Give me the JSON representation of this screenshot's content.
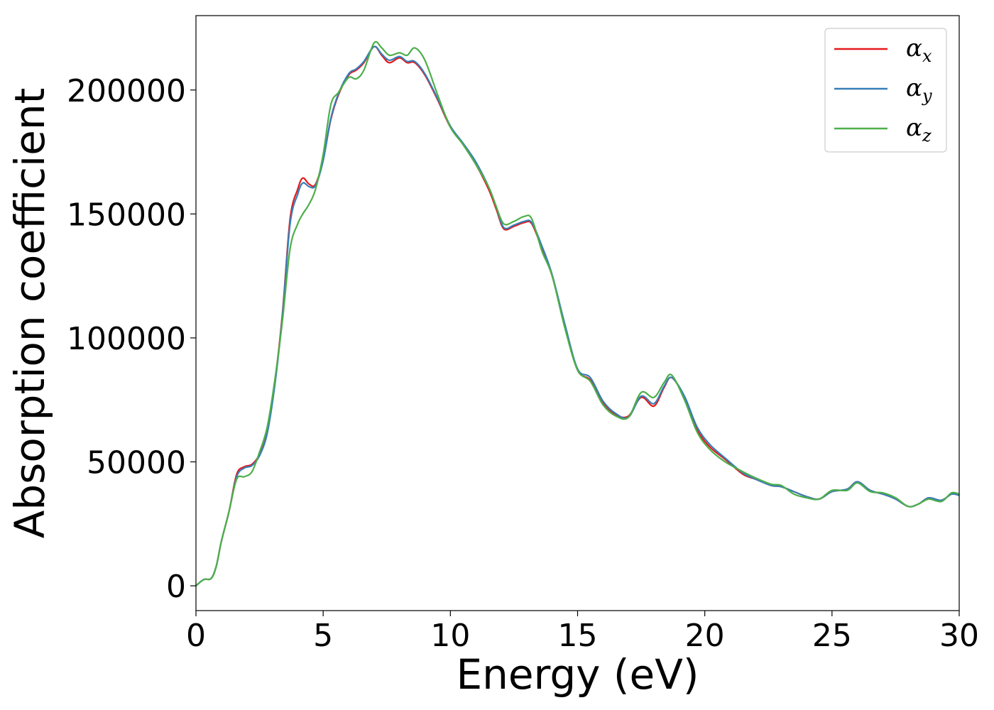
{
  "chart_data": {
    "type": "line",
    "title": "",
    "xlabel": "Energy (eV)",
    "ylabel": "Absorption coefficient",
    "xlim": [
      0,
      30
    ],
    "ylim": [
      -10000,
      230000
    ],
    "xticks": [
      0,
      5,
      10,
      15,
      20,
      25,
      30
    ],
    "yticks": [
      0,
      50000,
      100000,
      150000,
      200000
    ],
    "grid": false,
    "legend_position": "top-right",
    "x": [
      0,
      0.3,
      0.6,
      0.8,
      1.0,
      1.3,
      1.6,
      1.9,
      2.2,
      2.5,
      2.8,
      3.1,
      3.4,
      3.7,
      4.0,
      4.2,
      4.45,
      4.7,
      5.0,
      5.3,
      5.6,
      6.0,
      6.3,
      6.6,
      7.0,
      7.3,
      7.6,
      8.0,
      8.3,
      8.6,
      9.0,
      9.5,
      10.0,
      10.5,
      11.0,
      11.5,
      11.8,
      12.1,
      12.5,
      12.9,
      13.2,
      13.6,
      14.0,
      14.5,
      15.0,
      15.5,
      16.0,
      16.5,
      17.0,
      17.5,
      18.0,
      18.4,
      18.7,
      19.2,
      19.7,
      20.2,
      20.8,
      21.5,
      22.0,
      22.6,
      23.0,
      23.5,
      24.0,
      24.5,
      25.0,
      25.6,
      26.0,
      26.5,
      27.0,
      27.5,
      28.0,
      28.4,
      28.8,
      29.3,
      29.7,
      30.0
    ],
    "series": [
      {
        "name": "α_x",
        "label_base": "α",
        "label_sub": "x",
        "color": "#e41a1c",
        "values": [
          0,
          2500,
          3000,
          8000,
          18000,
          30000,
          45000,
          48000,
          49000,
          53000,
          62000,
          82000,
          110000,
          148000,
          160000,
          164500,
          162000,
          162000,
          172000,
          188000,
          198000,
          206000,
          208000,
          211000,
          217500,
          214000,
          211000,
          213000,
          211000,
          211000,
          206000,
          196000,
          185000,
          178000,
          170000,
          160000,
          152000,
          144000,
          145000,
          146500,
          146000,
          136000,
          125000,
          105000,
          87000,
          83000,
          74000,
          69000,
          68500,
          76000,
          72500,
          80000,
          84000,
          76000,
          63000,
          56000,
          51000,
          45000,
          43000,
          40500,
          40000,
          38000,
          36000,
          35000,
          38000,
          39000,
          42000,
          38500,
          37000,
          35000,
          32000,
          33000,
          35500,
          34500,
          37000,
          36500
        ]
      },
      {
        "name": "α_y",
        "label_base": "α",
        "label_sub": "y",
        "color": "#377eb8",
        "values": [
          0,
          2500,
          3000,
          8000,
          18000,
          30000,
          44000,
          47500,
          48500,
          52500,
          61500,
          81000,
          109000,
          146000,
          158000,
          162500,
          161000,
          161500,
          171500,
          188500,
          198500,
          206500,
          208500,
          211500,
          217500,
          214500,
          212000,
          213500,
          211500,
          211500,
          206500,
          196500,
          185500,
          178500,
          171000,
          161000,
          153000,
          144500,
          145500,
          147000,
          146500,
          137000,
          125500,
          105500,
          87500,
          84000,
          74500,
          69500,
          68000,
          76500,
          73500,
          80500,
          84000,
          76500,
          64000,
          57000,
          51500,
          45500,
          43000,
          40500,
          40000,
          38000,
          36000,
          35000,
          38000,
          39000,
          42000,
          38500,
          37000,
          35000,
          32000,
          33000,
          35500,
          34500,
          37000,
          36500
        ]
      },
      {
        "name": "α_z",
        "label_base": "α",
        "label_sub": "z",
        "color": "#4daf4a",
        "values": [
          0,
          2500,
          3000,
          8000,
          18000,
          30000,
          43000,
          44000,
          46000,
          54000,
          64000,
          83000,
          107000,
          136000,
          146000,
          150000,
          154000,
          160000,
          174000,
          194000,
          199000,
          205000,
          204500,
          208000,
          219000,
          217000,
          214000,
          215000,
          214000,
          217000,
          212000,
          198000,
          185000,
          178000,
          170000,
          161000,
          153000,
          146000,
          147000,
          149000,
          148000,
          135000,
          125000,
          104000,
          87000,
          82500,
          73000,
          68500,
          68000,
          78000,
          76000,
          82000,
          85000,
          75000,
          62000,
          55000,
          50000,
          46000,
          43500,
          41000,
          40500,
          37000,
          35500,
          35000,
          38500,
          38500,
          41500,
          38000,
          37500,
          35500,
          32000,
          33000,
          35000,
          34000,
          37500,
          37000
        ]
      }
    ]
  }
}
